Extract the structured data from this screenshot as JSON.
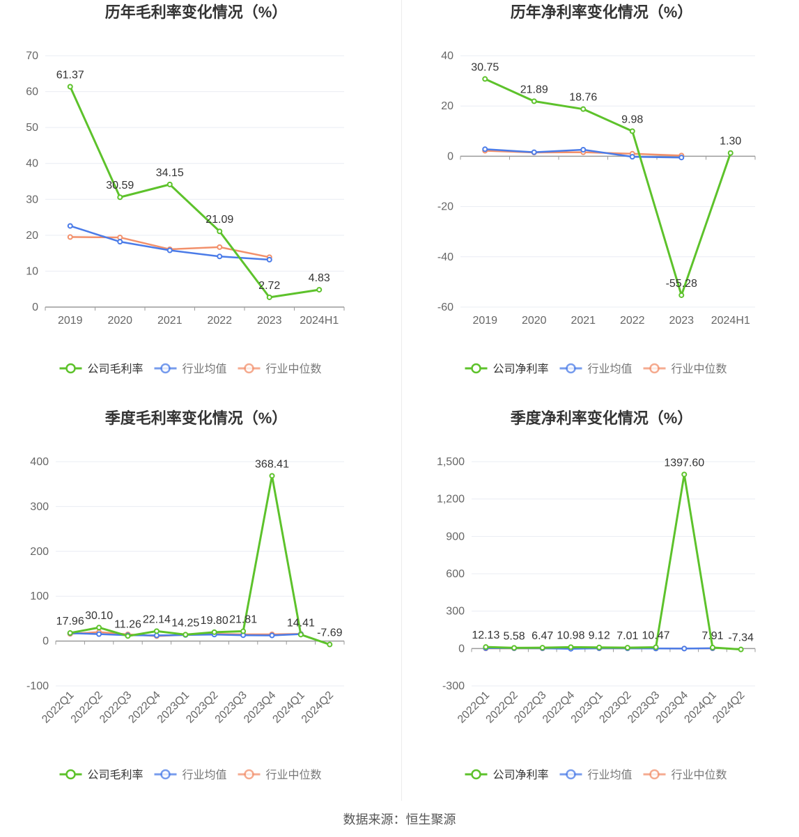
{
  "colors": {
    "company": "#5dc22b",
    "industry_avg": "#4a7be8",
    "industry_median": "#f2906b",
    "grid": "#e9ecf3",
    "axis": "#9a9a9a",
    "text": "#666666",
    "title": "#333333"
  },
  "source_text": "数据来源：恒生聚源",
  "chart_data": [
    {
      "type": "line",
      "title": "历年毛利率变化情况（%）",
      "categories": [
        "2019",
        "2020",
        "2021",
        "2022",
        "2023",
        "2024H1"
      ],
      "ylim": [
        0,
        70
      ],
      "yticks": [
        0,
        10,
        20,
        30,
        40,
        50,
        60,
        70
      ],
      "ytick_labels": [
        "0",
        "10",
        "20",
        "30",
        "40",
        "50",
        "60",
        "70"
      ],
      "x_label_rotate": false,
      "legend_position": "bottom-center",
      "grid": true,
      "series": [
        {
          "name": "公司毛利率",
          "values": [
            61.37,
            30.59,
            34.15,
            21.09,
            2.72,
            4.83
          ],
          "labels": [
            "61.37",
            "30.59",
            "34.15",
            "21.09",
            "2.72",
            "4.83"
          ]
        },
        {
          "name": "行业均值",
          "values": [
            22.6,
            18.2,
            15.8,
            14.1,
            13.2,
            null
          ]
        },
        {
          "name": "行业中位数",
          "values": [
            19.5,
            19.4,
            16.1,
            16.7,
            13.9,
            null
          ]
        }
      ]
    },
    {
      "type": "line",
      "title": "历年净利率变化情况（%）",
      "categories": [
        "2019",
        "2020",
        "2021",
        "2022",
        "2023",
        "2024H1"
      ],
      "ylim": [
        -60,
        40
      ],
      "yticks": [
        -60,
        -40,
        -20,
        0,
        20,
        40
      ],
      "ytick_labels": [
        "-60",
        "-40",
        "-20",
        "0",
        "20",
        "40"
      ],
      "x_label_rotate": false,
      "legend_position": "bottom-center",
      "grid": true,
      "series": [
        {
          "name": "公司净利率",
          "values": [
            30.75,
            21.89,
            18.76,
            9.98,
            -55.28,
            1.3
          ],
          "labels": [
            "30.75",
            "21.89",
            "18.76",
            "9.98",
            "-55.28",
            "1.30"
          ]
        },
        {
          "name": "行业均值",
          "values": [
            2.8,
            1.6,
            2.6,
            -0.2,
            -0.5,
            null
          ]
        },
        {
          "name": "行业中位数",
          "values": [
            2.2,
            1.5,
            1.6,
            1.0,
            0.3,
            null
          ]
        }
      ]
    },
    {
      "type": "line",
      "title": "季度毛利率变化情况（%）",
      "categories": [
        "2022Q1",
        "2022Q2",
        "2022Q3",
        "2022Q4",
        "2023Q1",
        "2023Q2",
        "2023Q3",
        "2023Q4",
        "2024Q1",
        "2024Q2"
      ],
      "ylim": [
        -100,
        400
      ],
      "yticks": [
        -100,
        0,
        100,
        200,
        300,
        400
      ],
      "ytick_labels": [
        "-100",
        "0",
        "100",
        "200",
        "300",
        "400"
      ],
      "x_label_rotate": true,
      "legend_position": "bottom-center",
      "grid": true,
      "series": [
        {
          "name": "公司毛利率",
          "values": [
            17.96,
            30.1,
            11.26,
            22.14,
            14.25,
            19.8,
            21.81,
            368.41,
            14.41,
            -7.69
          ],
          "labels": [
            "17.96",
            "30.10",
            "11.26",
            "22.14",
            "14.25",
            "19.80",
            "21.81",
            "368.41",
            "14.41",
            "-7.69"
          ]
        },
        {
          "name": "行业均值",
          "values": [
            17.5,
            15.5,
            13.0,
            12.5,
            13.5,
            14.5,
            13.0,
            12.5,
            15.5,
            null
          ]
        },
        {
          "name": "行业中位数",
          "values": [
            16.0,
            20.0,
            15.0,
            11.0,
            14.0,
            16.0,
            15.0,
            15.0,
            16.0,
            null
          ]
        }
      ]
    },
    {
      "type": "line",
      "title": "季度净利率变化情况（%）",
      "categories": [
        "2022Q1",
        "2022Q2",
        "2022Q3",
        "2022Q4",
        "2023Q1",
        "2023Q2",
        "2023Q3",
        "2023Q4",
        "2024Q1",
        "2024Q2"
      ],
      "ylim": [
        -300,
        1500
      ],
      "yticks": [
        -300,
        0,
        300,
        600,
        900,
        1200,
        1500
      ],
      "ytick_labels": [
        "-300",
        "0",
        "300",
        "600",
        "900",
        "1,200",
        "1,500"
      ],
      "x_label_rotate": true,
      "legend_position": "bottom-center",
      "grid": true,
      "series": [
        {
          "name": "公司净利率",
          "values": [
            12.13,
            5.58,
            6.47,
            10.98,
            9.12,
            7.01,
            10.47,
            1397.6,
            7.91,
            -7.34
          ],
          "labels": [
            "12.13",
            "5.58",
            "6.47",
            "10.98",
            "9.12",
            "7.01",
            "10.47",
            "1397.60",
            "7.91",
            "-7.34"
          ]
        },
        {
          "name": "行业均值",
          "values": [
            3.0,
            2.5,
            2.0,
            -2.0,
            2.0,
            1.5,
            0.5,
            -0.5,
            2.5,
            null
          ]
        },
        {
          "name": "行业中位数",
          "values": [
            1.0,
            1.5,
            1.0,
            1.0,
            1.5,
            1.0,
            0.5,
            0.0,
            1.5,
            null
          ]
        }
      ]
    }
  ]
}
